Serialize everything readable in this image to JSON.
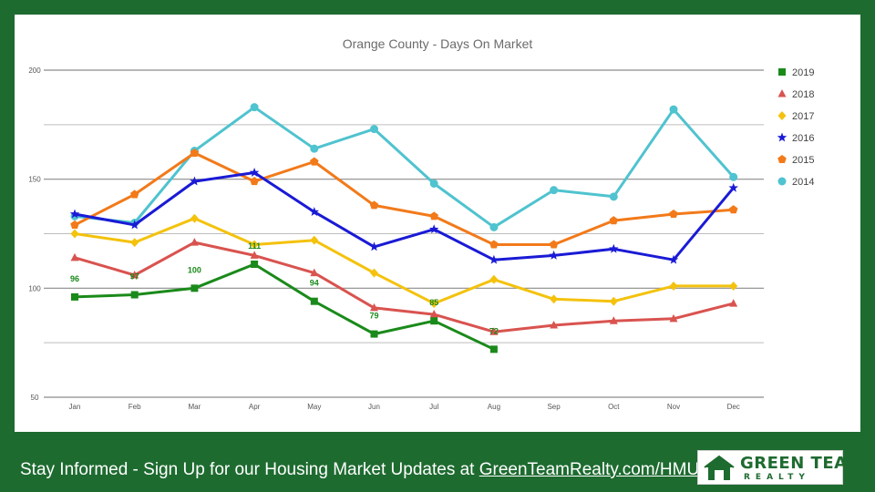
{
  "chart_data": {
    "type": "line",
    "title": "Orange County - Days On Market",
    "categories": [
      "Jan",
      "Feb",
      "Mar",
      "Apr",
      "May",
      "Jun",
      "Jul",
      "Aug",
      "Sep",
      "Oct",
      "Nov",
      "Dec"
    ],
    "ylim": [
      50,
      200
    ],
    "yticks": [
      200,
      150,
      100,
      50
    ],
    "grid": true,
    "legend_position": "right",
    "series": [
      {
        "name": "2019",
        "color": "#1a8a1a",
        "marker": "square",
        "values": [
          96,
          97,
          100,
          111,
          94,
          79,
          85,
          72,
          null,
          null,
          null,
          null
        ],
        "data_labels": [
          "96",
          "97",
          "100",
          "111",
          "94",
          "79",
          "85",
          "72",
          null,
          null,
          null,
          null
        ]
      },
      {
        "name": "2018",
        "color": "#d9534f",
        "marker": "triangle",
        "values": [
          114,
          106,
          121,
          115,
          107,
          91,
          88,
          80,
          83,
          85,
          86,
          93
        ]
      },
      {
        "name": "2017",
        "color": "#f4c20d",
        "marker": "diamond",
        "values": [
          125,
          121,
          132,
          120,
          122,
          107,
          93,
          104,
          95,
          94,
          101,
          101
        ]
      },
      {
        "name": "2016",
        "color": "#1a1ad6",
        "marker": "star",
        "values": [
          134,
          129,
          149,
          153,
          135,
          119,
          127,
          113,
          115,
          118,
          113,
          146
        ]
      },
      {
        "name": "2015",
        "color": "#f27a1a",
        "marker": "pentagon",
        "values": [
          129,
          143,
          162,
          149,
          158,
          138,
          133,
          120,
          120,
          131,
          134,
          136
        ]
      },
      {
        "name": "2014",
        "color": "#4fc3cf",
        "marker": "circle",
        "values": [
          133,
          130,
          163,
          183,
          164,
          173,
          148,
          128,
          145,
          142,
          182,
          151
        ]
      }
    ]
  },
  "footer": {
    "text": "Stay Informed - Sign Up for our Housing Market Updates at ",
    "link": "GreenTeamRealty.com/HMU"
  },
  "logo": {
    "line1": "GREEN TEAM",
    "line2": "REALTY",
    "color": "#1e6b30"
  },
  "colors": {
    "background": "#1e6b30",
    "panel": "#ffffff",
    "grid": "#9e9e9e"
  }
}
